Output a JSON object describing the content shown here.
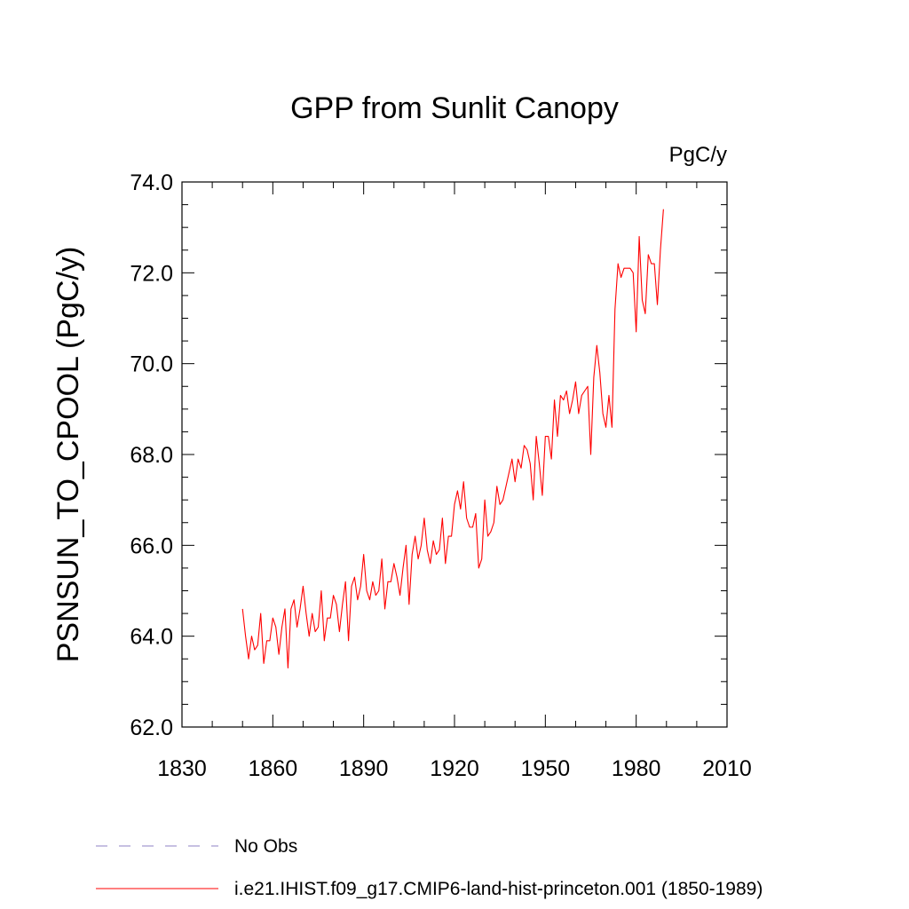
{
  "title": "GPP from Sunlit Canopy",
  "units": "PgC/y",
  "chart_data": {
    "type": "line",
    "title": "GPP from Sunlit Canopy",
    "xlabel": "",
    "ylabel": "PSNSUN_TO_CPOOL  (PgC/y)",
    "xlim": [
      1830,
      2010
    ],
    "ylim": [
      62.0,
      74.0
    ],
    "x_ticks": [
      "1830",
      "1860",
      "1890",
      "1920",
      "1950",
      "1980",
      "2010"
    ],
    "y_ticks": [
      "62.0",
      "64.0",
      "66.0",
      "68.0",
      "70.0",
      "72.0",
      "74.0"
    ],
    "grid": false,
    "series": [
      {
        "name": "i.e21.IHIST.f09_g17.CMIP6-land-hist-princeton.001 (1850-1989)",
        "color": "#ff0000",
        "x_start": 1850,
        "x_step": 1,
        "values": [
          64.6,
          64.0,
          63.5,
          64.0,
          63.7,
          63.8,
          64.5,
          63.4,
          63.9,
          63.9,
          64.4,
          64.2,
          63.6,
          64.2,
          64.6,
          63.3,
          64.6,
          64.8,
          64.2,
          64.6,
          65.1,
          64.5,
          64.0,
          64.5,
          64.1,
          64.2,
          65.0,
          63.9,
          64.4,
          64.4,
          64.9,
          64.7,
          64.1,
          64.7,
          65.2,
          63.9,
          65.1,
          65.3,
          64.8,
          65.1,
          65.8,
          65.0,
          64.8,
          65.2,
          64.9,
          65.0,
          65.7,
          64.6,
          65.2,
          65.2,
          65.6,
          65.3,
          64.9,
          65.5,
          66.0,
          64.7,
          65.8,
          66.2,
          65.7,
          66.0,
          66.6,
          65.9,
          65.6,
          66.1,
          65.8,
          65.9,
          66.6,
          65.6,
          66.2,
          66.2,
          66.9,
          67.2,
          66.8,
          67.4,
          66.6,
          66.4,
          66.4,
          66.7,
          65.5,
          65.7,
          67.0,
          66.2,
          66.3,
          66.5,
          67.3,
          66.9,
          67.0,
          67.3,
          67.6,
          67.9,
          67.4,
          67.9,
          67.7,
          68.2,
          68.1,
          67.8,
          67.0,
          68.4,
          67.8,
          67.1,
          68.4,
          68.4,
          67.9,
          69.2,
          68.4,
          69.3,
          69.2,
          69.4,
          68.9,
          69.2,
          69.6,
          68.9,
          69.3,
          69.4,
          69.5,
          68.0,
          69.7,
          70.4,
          69.8,
          68.9,
          68.6,
          69.3,
          68.6,
          71.2,
          72.2,
          71.9,
          72.1,
          72.1,
          72.1,
          72.0,
          70.7,
          72.8,
          71.4,
          71.1,
          72.4,
          72.2,
          72.2,
          71.3,
          72.5,
          73.4
        ]
      },
      {
        "name": "No Obs",
        "color": "#8f80c4",
        "dashed": true,
        "values": []
      }
    ],
    "legend_placement": "bottom-left"
  }
}
